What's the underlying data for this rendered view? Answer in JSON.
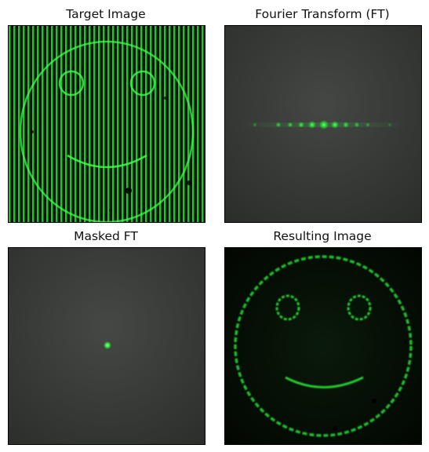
{
  "figure": {
    "panels": [
      {
        "title": "Target Image",
        "image": "Smiley face image with dense vertical green grating stripes"
      },
      {
        "title": "Fourier Transform (FT)",
        "image": "Horizontal row of green diffraction spots on dark gray"
      },
      {
        "title": "Masked FT",
        "image": "Single green dot on dark gray background"
      },
      {
        "title": "Resulting Image",
        "image": "Filtered smiley face in green on black background"
      }
    ]
  },
  "colors": {
    "green": "#2bff3a",
    "background_dark": "#3a3c3a",
    "black": "#020802"
  }
}
